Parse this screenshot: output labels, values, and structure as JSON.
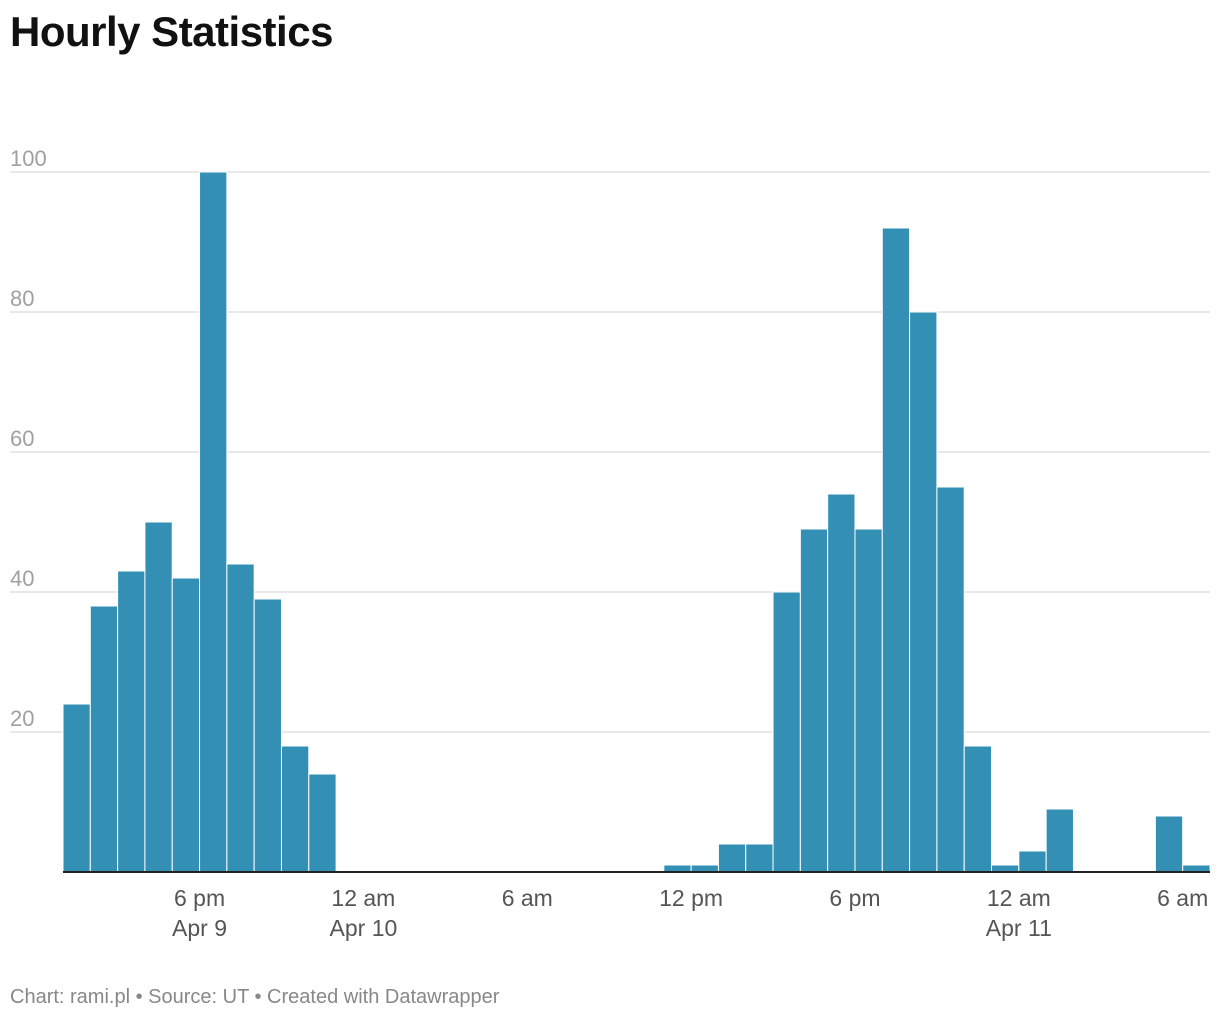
{
  "title": "Hourly Statistics",
  "footer": "Chart: rami.pl • Source: UT • Created with Datawrapper",
  "colors": {
    "bar": "#3390b4",
    "grid": "#e2e2e2",
    "axis": "#222222"
  },
  "chart_data": {
    "type": "bar",
    "title": "Hourly Statistics",
    "xlabel": "",
    "ylabel": "",
    "ylim": [
      0,
      100
    ],
    "grid": true,
    "x_start_hour_offset": 0,
    "values": [
      24,
      38,
      43,
      50,
      42,
      100,
      44,
      39,
      18,
      14,
      0,
      0,
      0,
      0,
      0,
      0,
      0,
      0,
      0,
      0,
      0,
      0,
      1,
      1,
      4,
      4,
      40,
      49,
      54,
      49,
      92,
      80,
      55,
      18,
      1,
      3,
      9,
      0,
      0,
      0,
      8,
      1
    ],
    "y_ticks": [
      {
        "value": 20,
        "label": "20"
      },
      {
        "value": 40,
        "label": "40"
      },
      {
        "value": 60,
        "label": "60"
      },
      {
        "value": 80,
        "label": "80"
      },
      {
        "value": 100,
        "label": "100"
      }
    ],
    "x_ticks": [
      {
        "hour": 18,
        "label": "6 pm",
        "sublabel": "Apr 9"
      },
      {
        "hour": 24,
        "label": "12 am",
        "sublabel": "Apr 10"
      },
      {
        "hour": 30,
        "label": "6 am",
        "sublabel": ""
      },
      {
        "hour": 36,
        "label": "12 pm",
        "sublabel": ""
      },
      {
        "hour": 42,
        "label": "6 pm",
        "sublabel": ""
      },
      {
        "hour": 48,
        "label": "12 am",
        "sublabel": "Apr 11"
      },
      {
        "hour": 54,
        "label": "6 am",
        "sublabel": ""
      }
    ],
    "first_bar_hour": 13
  }
}
